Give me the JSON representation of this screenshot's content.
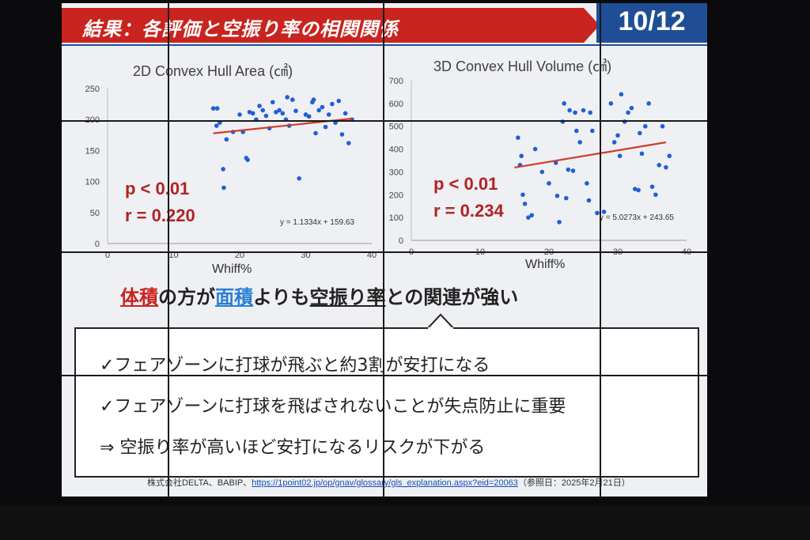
{
  "header": {
    "title": "結果：各評価と空振り率の相関関係",
    "page_number": "10/12"
  },
  "chart_data": [
    {
      "type": "scatter",
      "title": "2D Convex Hull Area (㎠)",
      "xlabel": "Whiff%",
      "ylabel": "",
      "xlim": [
        0,
        40
      ],
      "ylim": [
        0,
        250
      ],
      "xticks": [
        "0",
        "10",
        "20",
        "30",
        "40"
      ],
      "yticks": [
        "0",
        "50",
        "100",
        "150",
        "200",
        "250"
      ],
      "stats": {
        "p": "p < 0.01",
        "r": "r = 0.220"
      },
      "equation": "y = 1.1334x + 159.63",
      "trend": {
        "slope": 1.1334,
        "intercept": 159.63,
        "x_range": [
          16,
          37
        ]
      },
      "colors": {
        "points": "#1f5fd6",
        "trend": "#d13b2b"
      },
      "points": [
        [
          16,
          218
        ],
        [
          16.6,
          218
        ],
        [
          16.5,
          190
        ],
        [
          17,
          195
        ],
        [
          17.5,
          120
        ],
        [
          17.6,
          90
        ],
        [
          18,
          168
        ],
        [
          19,
          180
        ],
        [
          20,
          208
        ],
        [
          20.5,
          180
        ],
        [
          21,
          138
        ],
        [
          21.2,
          135
        ],
        [
          21.5,
          212
        ],
        [
          22,
          210
        ],
        [
          22.5,
          200
        ],
        [
          23,
          222
        ],
        [
          23.5,
          215
        ],
        [
          24,
          206
        ],
        [
          24.5,
          186
        ],
        [
          25,
          228
        ],
        [
          25.5,
          212
        ],
        [
          26,
          215
        ],
        [
          26.5,
          210
        ],
        [
          27,
          200
        ],
        [
          27.2,
          236
        ],
        [
          27.5,
          190
        ],
        [
          28,
          232
        ],
        [
          28.5,
          214
        ],
        [
          29,
          105
        ],
        [
          30,
          208
        ],
        [
          30.5,
          205
        ],
        [
          31,
          228
        ],
        [
          31.2,
          232
        ],
        [
          31.5,
          178
        ],
        [
          32,
          215
        ],
        [
          32.5,
          220
        ],
        [
          33,
          188
        ],
        [
          33.5,
          208
        ],
        [
          34,
          225
        ],
        [
          34.5,
          195
        ],
        [
          35,
          230
        ],
        [
          35.5,
          176
        ],
        [
          36,
          210
        ],
        [
          36.5,
          162
        ],
        [
          37,
          200
        ]
      ]
    },
    {
      "type": "scatter",
      "title": "3D Convex Hull Volume (㎤)",
      "xlabel": "Whiff%",
      "ylabel": "",
      "xlim": [
        0,
        40
      ],
      "ylim": [
        0,
        700
      ],
      "xticks": [
        "0",
        "10",
        "20",
        "30",
        "40"
      ],
      "yticks": [
        "0",
        "100",
        "200",
        "300",
        "400",
        "500",
        "600",
        "700"
      ],
      "stats": {
        "p": "p < 0.01",
        "r": "r = 0.234"
      },
      "equation": "y = 5.0273x + 243.65",
      "trend": {
        "slope": 5.0273,
        "intercept": 243.65,
        "x_range": [
          15,
          37
        ]
      },
      "colors": {
        "points": "#1f5fd6",
        "trend": "#d13b2b"
      },
      "points": [
        [
          15.5,
          450
        ],
        [
          15.8,
          330
        ],
        [
          16,
          370
        ],
        [
          16.2,
          200
        ],
        [
          16.5,
          160
        ],
        [
          17,
          100
        ],
        [
          17.5,
          110
        ],
        [
          18,
          400
        ],
        [
          19,
          300
        ],
        [
          20,
          250
        ],
        [
          21,
          340
        ],
        [
          21.2,
          195
        ],
        [
          21.5,
          80
        ],
        [
          22,
          520
        ],
        [
          22.2,
          600
        ],
        [
          22.5,
          185
        ],
        [
          22.8,
          310
        ],
        [
          23,
          570
        ],
        [
          23.5,
          305
        ],
        [
          23.8,
          560
        ],
        [
          24,
          480
        ],
        [
          24.5,
          430
        ],
        [
          25,
          570
        ],
        [
          25.5,
          250
        ],
        [
          25.8,
          175
        ],
        [
          26,
          560
        ],
        [
          26.3,
          480
        ],
        [
          27,
          120
        ],
        [
          28,
          125
        ],
        [
          29,
          600
        ],
        [
          29.5,
          430
        ],
        [
          30,
          460
        ],
        [
          30.3,
          370
        ],
        [
          30.5,
          640
        ],
        [
          31,
          520
        ],
        [
          31.5,
          560
        ],
        [
          32,
          580
        ],
        [
          32.5,
          225
        ],
        [
          33,
          220
        ],
        [
          33.2,
          470
        ],
        [
          33.5,
          380
        ],
        [
          34,
          500
        ],
        [
          34.5,
          600
        ],
        [
          35,
          235
        ],
        [
          35.5,
          200
        ],
        [
          36,
          330
        ],
        [
          36.5,
          500
        ],
        [
          37,
          320
        ],
        [
          37.5,
          370
        ]
      ]
    }
  ],
  "summary": {
    "part1": "体積",
    "part2": "の方が",
    "part3": "面積",
    "part4": "よりも",
    "part5": "空振り率",
    "part6": "との関連が強い"
  },
  "callout": {
    "items": [
      "✓フェアゾーンに打球が飛ぶと約3割が安打になる",
      "✓フェアゾーンに打球を飛ばされないことが失点防止に重要",
      "⇒ 空振り率が高いほど安打になるリスクが下がる"
    ]
  },
  "source": {
    "prefix": "株式会社DELTA、BABIP、",
    "link": "https://1point02.jp/op/gnav/glossary/gls_explanation.aspx?eid=20063",
    "suffix": "（参照日：2025年2月21日）"
  }
}
